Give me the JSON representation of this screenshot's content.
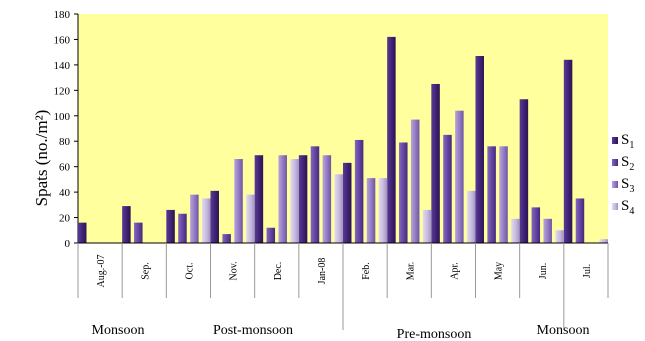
{
  "chart_data": {
    "type": "bar",
    "ylabel": "Spats (no./m²)",
    "ylim": [
      0,
      180
    ],
    "yticks": [
      0,
      20,
      40,
      60,
      80,
      100,
      120,
      140,
      160,
      180
    ],
    "categories": [
      "Aug.-07",
      "Sep.",
      "Oct.",
      "Nov.",
      "Dec.",
      "Jan-08",
      "Feb.",
      "Mar.",
      "Apr.",
      "May",
      "Jun.",
      "Jul."
    ],
    "series": [
      {
        "name": "S1",
        "values": [
          16,
          29,
          26,
          41,
          69,
          69,
          63,
          162,
          125,
          147,
          113,
          144
        ]
      },
      {
        "name": "S2",
        "values": [
          0,
          16,
          23,
          7,
          12,
          76,
          81,
          79,
          85,
          76,
          28,
          35
        ]
      },
      {
        "name": "S3",
        "values": [
          0,
          0,
          38,
          66,
          69,
          69,
          51,
          97,
          104,
          76,
          19,
          0
        ]
      },
      {
        "name": "S4",
        "values": [
          0,
          0,
          35,
          38,
          66,
          54,
          51,
          26,
          41,
          19,
          10,
          3
        ]
      }
    ],
    "season_labels": [
      "Monsoon",
      "Post-monsoon",
      "Pre-monsoon",
      "Monsoon"
    ],
    "legend_position": "right",
    "grid": false,
    "colors": {
      "plot_background": "#ffff9e",
      "series": [
        "#4a2a82",
        "#6f4fae",
        "#9c86c8",
        "#c9bedf"
      ]
    }
  }
}
